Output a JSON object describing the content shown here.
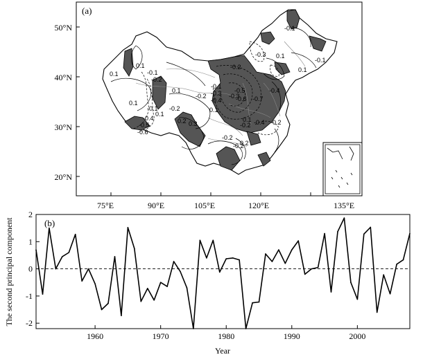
{
  "chart_data": [
    {
      "type": "map",
      "panel_label": "(a)",
      "lat_ticks": [
        "20°N",
        "30°N",
        "40°N",
        "50°N"
      ],
      "lon_ticks": [
        "75°E",
        "90°E",
        "105°E",
        "120°E",
        "135°E"
      ],
      "contour_labels": [
        "0.1",
        "-0.1",
        "0.1",
        "-0.3",
        "0.1",
        "-0.1",
        "0.1",
        "0.1",
        "-0.1",
        "-0.2",
        "-0.2",
        "0.1",
        "-0.1",
        "-0.4",
        "0.1",
        "-0.2",
        "-0.5",
        "-0.6",
        "-0.7",
        "-0.1",
        "-0.3",
        "-0.4",
        "-0.2",
        "-0.3",
        "-0.4",
        "-0.5",
        "-0.6",
        "0.1",
        "0.2",
        "0.3",
        "-0.2",
        "0.1",
        "-0.4",
        "-0.2",
        "-0.2",
        "-0.2",
        "0.2"
      ]
    },
    {
      "type": "line",
      "panel_label": "(b)",
      "xlabel": "Year",
      "ylabel": "The second principal component",
      "xlim": [
        1951,
        2008
      ],
      "ylim": [
        -2.2,
        2
      ],
      "xticks": [
        1960,
        1970,
        1980,
        1990,
        2000
      ],
      "yticks": [
        -2,
        -1,
        0,
        1,
        2
      ],
      "reference_line": 0,
      "x": [
        1951,
        1952,
        1953,
        1954,
        1955,
        1956,
        1957,
        1958,
        1959,
        1960,
        1961,
        1962,
        1963,
        1964,
        1965,
        1966,
        1967,
        1968,
        1969,
        1970,
        1971,
        1972,
        1973,
        1974,
        1975,
        1976,
        1977,
        1978,
        1979,
        1980,
        1981,
        1982,
        1983,
        1984,
        1985,
        1986,
        1987,
        1988,
        1989,
        1990,
        1991,
        1992,
        1993,
        1994,
        1995,
        1996,
        1997,
        1998,
        1999,
        2000,
        2001,
        2002,
        2003,
        2004,
        2005,
        2006,
        2007,
        2008
      ],
      "series": [
        {
          "values": [
            0.7,
            -0.93,
            1.5,
            0.0,
            0.45,
            0.6,
            1.27,
            -0.45,
            0.0,
            -0.55,
            -1.5,
            -1.27,
            0.45,
            -1.72,
            1.52,
            0.75,
            -1.2,
            -0.72,
            -1.15,
            -0.5,
            -0.65,
            0.27,
            -0.1,
            -0.7,
            -2.2,
            1.05,
            0.4,
            1.05,
            -0.12,
            0.37,
            0.4,
            0.33,
            -2.2,
            -1.25,
            -1.22,
            0.55,
            0.27,
            0.7,
            0.2,
            0.7,
            1.03,
            -0.2,
            0.0,
            0.05,
            1.3,
            -0.85,
            1.37,
            1.87,
            -0.5,
            -1.12,
            1.28,
            1.53,
            -1.6,
            -0.22,
            -0.92,
            0.17,
            0.33,
            1.3
          ]
        }
      ]
    }
  ]
}
